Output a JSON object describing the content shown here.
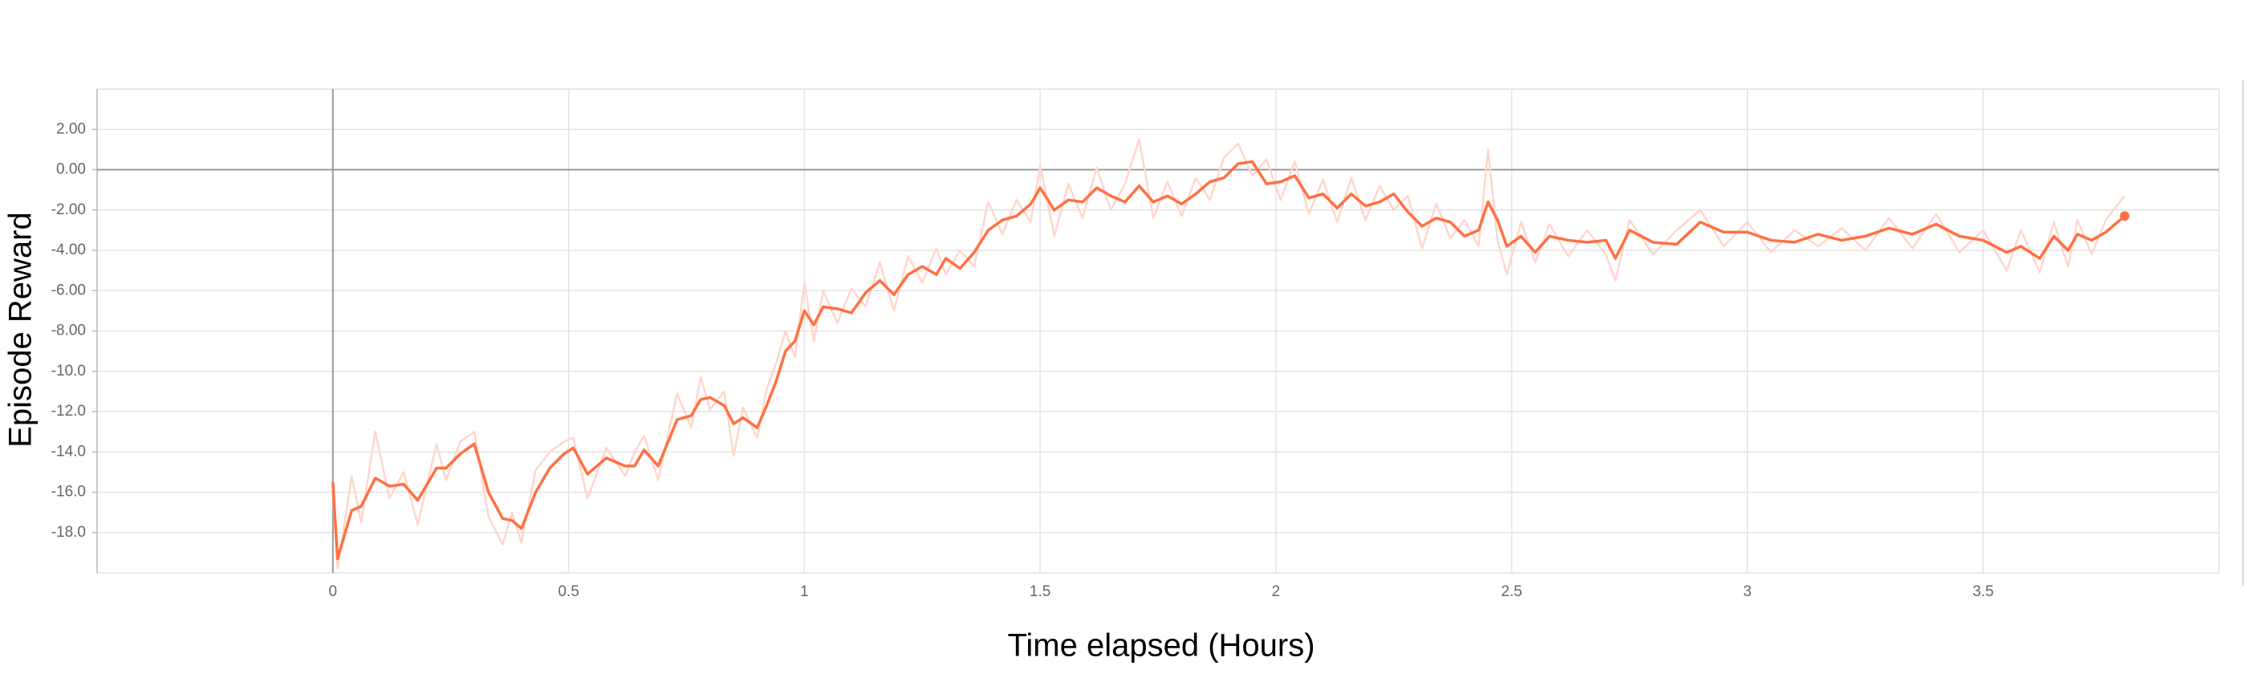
{
  "chart_data": {
    "type": "line",
    "y_label": "Episode Reward",
    "x_label": "Time elapsed (Hours)",
    "xlim": [
      -0.5,
      4.0
    ],
    "ylim": [
      -20,
      4
    ],
    "xticks": [
      0,
      0.5,
      1,
      1.5,
      2,
      2.5,
      3,
      3.5
    ],
    "yticks": [
      {
        "value": 2,
        "label": "2.00"
      },
      {
        "value": 0,
        "label": "0.00"
      },
      {
        "value": -2,
        "label": "-2.00"
      },
      {
        "value": -4,
        "label": "-4.00"
      },
      {
        "value": -6,
        "label": "-6.00"
      },
      {
        "value": -8,
        "label": "-8.00"
      },
      {
        "value": -10,
        "label": "-10.0"
      },
      {
        "value": -12,
        "label": "-12.0"
      },
      {
        "value": -14,
        "label": "-14.0"
      },
      {
        "value": -16,
        "label": "-16.0"
      },
      {
        "value": -18,
        "label": "-18.0"
      }
    ],
    "grid": true,
    "x": [
      0,
      0.01,
      0.04,
      0.06,
      0.09,
      0.12,
      0.15,
      0.18,
      0.22,
      0.24,
      0.27,
      0.3,
      0.33,
      0.36,
      0.38,
      0.4,
      0.43,
      0.46,
      0.49,
      0.51,
      0.54,
      0.58,
      0.62,
      0.64,
      0.66,
      0.69,
      0.73,
      0.76,
      0.78,
      0.8,
      0.83,
      0.85,
      0.87,
      0.9,
      0.92,
      0.94,
      0.96,
      0.98,
      1.0,
      1.02,
      1.04,
      1.07,
      1.1,
      1.13,
      1.16,
      1.19,
      1.22,
      1.25,
      1.28,
      1.3,
      1.33,
      1.36,
      1.39,
      1.42,
      1.45,
      1.48,
      1.5,
      1.53,
      1.56,
      1.59,
      1.62,
      1.65,
      1.68,
      1.71,
      1.74,
      1.77,
      1.8,
      1.83,
      1.86,
      1.89,
      1.92,
      1.95,
      1.98,
      2.01,
      2.04,
      2.07,
      2.1,
      2.13,
      2.16,
      2.19,
      2.22,
      2.25,
      2.28,
      2.31,
      2.34,
      2.37,
      2.4,
      2.43,
      2.45,
      2.47,
      2.49,
      2.52,
      2.55,
      2.58,
      2.62,
      2.66,
      2.7,
      2.72,
      2.75,
      2.8,
      2.85,
      2.9,
      2.95,
      3.0,
      3.05,
      3.1,
      3.15,
      3.2,
      3.25,
      3.3,
      3.35,
      3.4,
      3.45,
      3.5,
      3.55,
      3.58,
      3.62,
      3.65,
      3.68,
      3.7,
      3.73,
      3.76,
      3.8
    ],
    "series": [
      {
        "color": "#ffd6cc",
        "width": 2.5,
        "values": [
          -16.0,
          -19.8,
          -15.2,
          -17.5,
          -13.0,
          -16.3,
          -15.0,
          -17.6,
          -13.6,
          -15.4,
          -13.5,
          -13.0,
          -17.2,
          -18.6,
          -17.0,
          -18.5,
          -14.9,
          -14.0,
          -13.5,
          -13.3,
          -16.3,
          -13.8,
          -15.2,
          -14.0,
          -13.2,
          -15.4,
          -11.1,
          -12.8,
          -10.3,
          -11.9,
          -11.0,
          -14.2,
          -11.8,
          -13.3,
          -10.9,
          -9.6,
          -8.0,
          -9.3,
          -5.6,
          -8.5,
          -6.0,
          -7.6,
          -5.9,
          -6.8,
          -4.6,
          -7.0,
          -4.3,
          -5.6,
          -3.9,
          -5.2,
          -4.0,
          -4.8,
          -1.6,
          -3.2,
          -1.5,
          -2.6,
          0.2,
          -3.3,
          -0.7,
          -2.4,
          0.1,
          -2.0,
          -0.7,
          1.5,
          -2.4,
          -0.6,
          -2.3,
          -0.4,
          -1.5,
          0.6,
          1.3,
          -0.3,
          0.5,
          -1.5,
          0.4,
          -2.2,
          -0.5,
          -2.6,
          -0.4,
          -2.5,
          -0.8,
          -2.0,
          -1.3,
          -3.9,
          -1.7,
          -3.4,
          -2.5,
          -3.8,
          1.0,
          -3.5,
          -5.2,
          -2.6,
          -4.6,
          -2.7,
          -4.3,
          -3.0,
          -4.2,
          -5.5,
          -2.5,
          -4.2,
          -3.0,
          -2.0,
          -3.8,
          -2.6,
          -4.1,
          -3.0,
          -3.8,
          -2.9,
          -4.0,
          -2.4,
          -3.9,
          -2.2,
          -4.1,
          -3.0,
          -5.0,
          -3.0,
          -5.1,
          -2.6,
          -4.8,
          -2.5,
          -4.2,
          -2.5,
          -1.3
        ]
      },
      {
        "color": "#ff7043",
        "width": 3.5,
        "end_marker": true,
        "values": [
          -15.5,
          -19.3,
          -16.9,
          -16.7,
          -15.3,
          -15.7,
          -15.6,
          -16.4,
          -14.8,
          -14.8,
          -14.1,
          -13.6,
          -16.0,
          -17.3,
          -17.4,
          -17.8,
          -16.0,
          -14.8,
          -14.1,
          -13.8,
          -15.1,
          -14.3,
          -14.7,
          -14.7,
          -13.9,
          -14.7,
          -12.4,
          -12.2,
          -11.4,
          -11.3,
          -11.7,
          -12.6,
          -12.3,
          -12.8,
          -11.7,
          -10.5,
          -9.0,
          -8.5,
          -7.0,
          -7.7,
          -6.8,
          -6.9,
          -7.1,
          -6.1,
          -5.5,
          -6.2,
          -5.2,
          -4.8,
          -5.2,
          -4.4,
          -4.9,
          -4.1,
          -3.0,
          -2.5,
          -2.3,
          -1.7,
          -0.9,
          -2.0,
          -1.5,
          -1.6,
          -0.9,
          -1.3,
          -1.6,
          -0.8,
          -1.6,
          -1.3,
          -1.7,
          -1.2,
          -0.6,
          -0.4,
          0.3,
          0.4,
          -0.7,
          -0.6,
          -0.3,
          -1.4,
          -1.2,
          -1.9,
          -1.2,
          -1.8,
          -1.6,
          -1.2,
          -2.1,
          -2.8,
          -2.4,
          -2.6,
          -3.3,
          -3.0,
          -1.6,
          -2.5,
          -3.8,
          -3.3,
          -4.1,
          -3.3,
          -3.5,
          -3.6,
          -3.5,
          -4.4,
          -3.0,
          -3.6,
          -3.7,
          -2.6,
          -3.1,
          -3.1,
          -3.5,
          -3.6,
          -3.2,
          -3.5,
          -3.3,
          -2.9,
          -3.2,
          -2.7,
          -3.3,
          -3.5,
          -4.1,
          -3.8,
          -4.4,
          -3.3,
          -4.0,
          -3.2,
          -3.5,
          -3.1,
          -2.3
        ]
      }
    ]
  }
}
